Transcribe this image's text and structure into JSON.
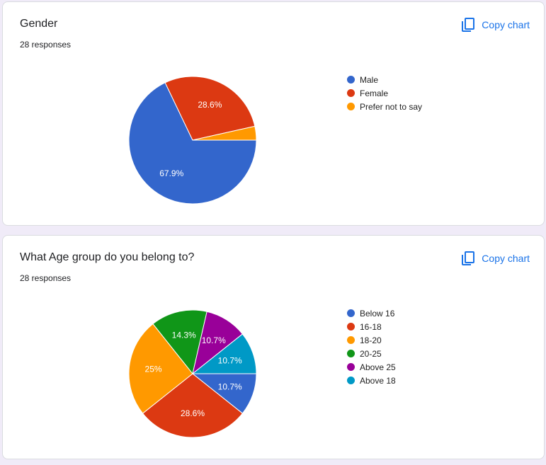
{
  "colors": {
    "background": "#f0ebf8",
    "accent": "#1a73e8"
  },
  "copy_label": "Copy chart",
  "copy_icon": "copy-icon",
  "chart_data": [
    {
      "type": "pie",
      "title": "Gender",
      "subtitle": "28 responses",
      "legend_position": "right",
      "categories": [
        "Male",
        "Female",
        "Prefer not to say"
      ],
      "values": [
        67.9,
        28.6,
        3.5
      ],
      "labels": [
        "67.9%",
        "28.6%",
        ""
      ],
      "colors": [
        "#3366cc",
        "#dc3912",
        "#ff9900"
      ]
    },
    {
      "type": "pie",
      "title": "What Age group do you belong to?",
      "subtitle": "28 responses",
      "legend_position": "right",
      "categories": [
        "Below 16",
        "16-18",
        "18-20",
        "20-25",
        "Above 25",
        "Above 18"
      ],
      "values": [
        10.7,
        28.6,
        25,
        14.3,
        10.7,
        10.7
      ],
      "labels": [
        "10.7%",
        "28.6%",
        "25%",
        "14.3%",
        "10.7%",
        "10.7%"
      ],
      "colors": [
        "#3366cc",
        "#dc3912",
        "#ff9900",
        "#109618",
        "#990099",
        "#0099c6"
      ]
    }
  ]
}
